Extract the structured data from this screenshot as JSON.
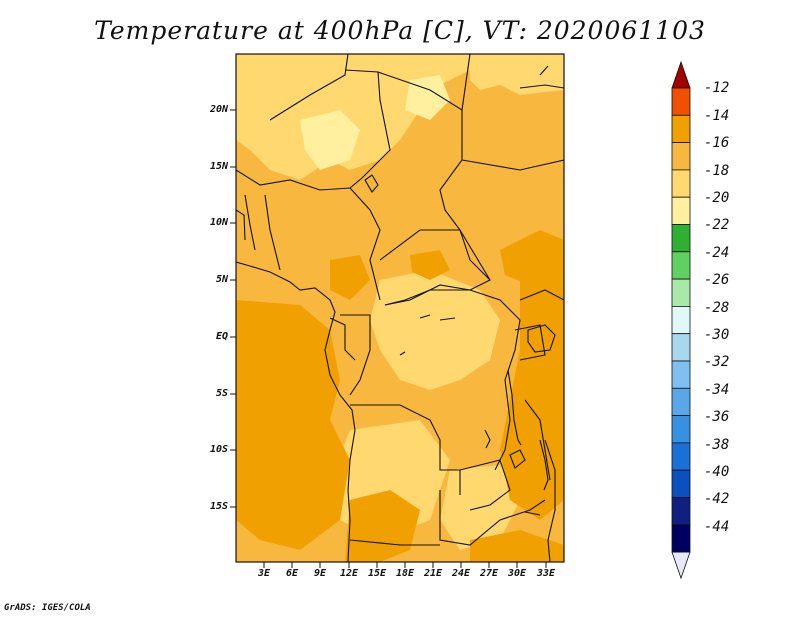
{
  "title": "Temperature at 400hPa [C], VT: 2020061103",
  "footer": "GrADS: IGES/COLA",
  "map": {
    "y_ticks": [
      "20N",
      "15N",
      "10N",
      "5N",
      "EQ",
      "5S",
      "10S",
      "15S"
    ],
    "x_ticks": [
      "3E",
      "6E",
      "9E",
      "12E",
      "15E",
      "18E",
      "21E",
      "24E",
      "27E",
      "30E",
      "33E"
    ]
  },
  "colorbar": {
    "labels": [
      "-12",
      "-14",
      "-16",
      "-18",
      "-20",
      "-22",
      "-24",
      "-26",
      "-28",
      "-30",
      "-32",
      "-34",
      "-36",
      "-38",
      "-40",
      "-42",
      "-44"
    ],
    "colors": [
      "#a50000",
      "#f05000",
      "#f0a000",
      "#f8b840",
      "#ffd870",
      "#fff0a0",
      "#30b030",
      "#60d060",
      "#a8e8a8",
      "#e0f8f8",
      "#a8d8f0",
      "#80c0f0",
      "#58a8e8",
      "#3890e0",
      "#1a70d8",
      "#0a50c0",
      "#102080",
      "#000060",
      "#e8e8f8"
    ]
  }
}
